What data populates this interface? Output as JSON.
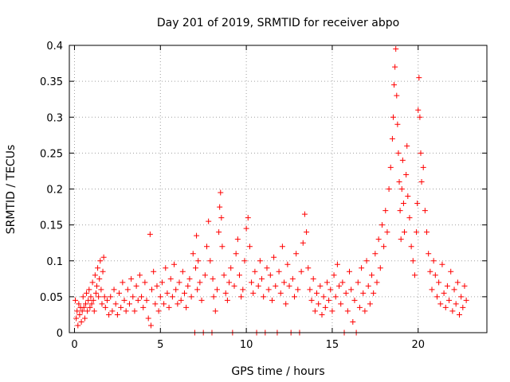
{
  "chart_data": {
    "type": "scatter",
    "title": "Day 201 of 2019, SRMTID for receiver abpo",
    "xlabel": "GPS time / hours",
    "ylabel": "SRMTID / TECUs",
    "xlim": [
      -0.3,
      24
    ],
    "ylim": [
      0,
      0.4
    ],
    "x_ticks": [
      0,
      5,
      10,
      15,
      20
    ],
    "x_tick_labels": [
      "0",
      "5",
      "10",
      "15",
      "20"
    ],
    "y_ticks": [
      0,
      0.05,
      0.1,
      0.15,
      0.2,
      0.25,
      0.3,
      0.35,
      0.4
    ],
    "y_tick_labels": [
      "0",
      "0.05",
      "0.1",
      "0.15",
      "0.2",
      "0.25",
      "0.3",
      "0.35",
      "0.4"
    ],
    "grid": true,
    "marker": "plus",
    "color": "#ff0000",
    "series": [
      {
        "name": "SRMTID",
        "points": [
          [
            0.05,
            0.045
          ],
          [
            0.1,
            0.02
          ],
          [
            0.15,
            0.03
          ],
          [
            0.2,
            0.01
          ],
          [
            0.25,
            0.04
          ],
          [
            0.3,
            0.025
          ],
          [
            0.35,
            0.035
          ],
          [
            0.4,
            0.015
          ],
          [
            0.45,
            0.03
          ],
          [
            0.5,
            0.05
          ],
          [
            0.55,
            0.035
          ],
          [
            0.6,
            0.02
          ],
          [
            0.65,
            0.04
          ],
          [
            0.7,
            0.055
          ],
          [
            0.75,
            0.03
          ],
          [
            0.8,
            0.045
          ],
          [
            0.85,
            0.06
          ],
          [
            0.9,
            0.035
          ],
          [
            0.95,
            0.05
          ],
          [
            1.0,
            0.04
          ],
          [
            1.05,
            0.07
          ],
          [
            1.1,
            0.045
          ],
          [
            1.15,
            0.03
          ],
          [
            1.2,
            0.08
          ],
          [
            1.25,
            0.055
          ],
          [
            1.3,
            0.065
          ],
          [
            1.35,
            0.09
          ],
          [
            1.4,
            0.05
          ],
          [
            1.45,
            0.075
          ],
          [
            1.5,
            0.1
          ],
          [
            1.55,
            0.06
          ],
          [
            1.6,
            0.04
          ],
          [
            1.65,
            0.085
          ],
          [
            1.7,
            0.105
          ],
          [
            1.75,
            0.05
          ],
          [
            1.8,
            0.035
          ],
          [
            1.9,
            0.045
          ],
          [
            2.0,
            0.025
          ],
          [
            2.1,
            0.05
          ],
          [
            2.2,
            0.03
          ],
          [
            2.3,
            0.06
          ],
          [
            2.4,
            0.04
          ],
          [
            2.5,
            0.025
          ],
          [
            2.6,
            0.055
          ],
          [
            2.7,
            0.035
          ],
          [
            2.8,
            0.07
          ],
          [
            2.9,
            0.045
          ],
          [
            3.0,
            0.03
          ],
          [
            3.1,
            0.06
          ],
          [
            3.2,
            0.04
          ],
          [
            3.3,
            0.075
          ],
          [
            3.4,
            0.05
          ],
          [
            3.5,
            0.03
          ],
          [
            3.6,
            0.065
          ],
          [
            3.7,
            0.045
          ],
          [
            3.8,
            0.08
          ],
          [
            3.9,
            0.05
          ],
          [
            4.0,
            0.035
          ],
          [
            4.1,
            0.07
          ],
          [
            4.2,
            0.045
          ],
          [
            4.3,
            0.02
          ],
          [
            4.4,
            0.137
          ],
          [
            4.45,
            0.01
          ],
          [
            4.5,
            0.06
          ],
          [
            4.6,
            0.085
          ],
          [
            4.7,
            0.04
          ],
          [
            4.8,
            0.065
          ],
          [
            4.9,
            0.03
          ],
          [
            5.0,
            0.05
          ],
          [
            5.1,
            0.07
          ],
          [
            5.2,
            0.04
          ],
          [
            5.3,
            0.09
          ],
          [
            5.4,
            0.055
          ],
          [
            5.5,
            0.035
          ],
          [
            5.6,
            0.075
          ],
          [
            5.7,
            0.05
          ],
          [
            5.8,
            0.095
          ],
          [
            5.9,
            0.06
          ],
          [
            6.0,
            0.04
          ],
          [
            6.1,
            0.07
          ],
          [
            6.2,
            0.045
          ],
          [
            6.3,
            0.085
          ],
          [
            6.4,
            0.055
          ],
          [
            6.5,
            0.035
          ],
          [
            6.6,
            0.065
          ],
          [
            6.7,
            0.075
          ],
          [
            6.8,
            0.05
          ],
          [
            6.9,
            0.11
          ],
          [
            7.0,
            0.0
          ],
          [
            7.05,
            0.09
          ],
          [
            7.1,
            0.135
          ],
          [
            7.15,
            0.06
          ],
          [
            7.2,
            0.1
          ],
          [
            7.3,
            0.07
          ],
          [
            7.4,
            0.045
          ],
          [
            7.5,
            0.0
          ],
          [
            7.6,
            0.08
          ],
          [
            7.7,
            0.12
          ],
          [
            7.8,
            0.155
          ],
          [
            7.9,
            0.1
          ],
          [
            8.0,
            0.0
          ],
          [
            8.05,
            0.075
          ],
          [
            8.1,
            0.05
          ],
          [
            8.2,
            0.03
          ],
          [
            8.3,
            0.06
          ],
          [
            8.4,
            0.14
          ],
          [
            8.45,
            0.175
          ],
          [
            8.5,
            0.195
          ],
          [
            8.55,
            0.16
          ],
          [
            8.6,
            0.12
          ],
          [
            8.7,
            0.08
          ],
          [
            8.8,
            0.055
          ],
          [
            8.9,
            0.045
          ],
          [
            9.0,
            0.07
          ],
          [
            9.1,
            0.09
          ],
          [
            9.2,
            0.0
          ],
          [
            9.3,
            0.065
          ],
          [
            9.4,
            0.11
          ],
          [
            9.5,
            0.13
          ],
          [
            9.6,
            0.08
          ],
          [
            9.7,
            0.05
          ],
          [
            9.8,
            0.06
          ],
          [
            9.9,
            0.1
          ],
          [
            10.0,
            0.145
          ],
          [
            10.1,
            0.16
          ],
          [
            10.2,
            0.12
          ],
          [
            10.3,
            0.07
          ],
          [
            10.4,
            0.055
          ],
          [
            10.5,
            0.085
          ],
          [
            10.6,
            0.0
          ],
          [
            10.7,
            0.065
          ],
          [
            10.8,
            0.1
          ],
          [
            10.9,
            0.075
          ],
          [
            11.0,
            0.05
          ],
          [
            11.1,
            0.0
          ],
          [
            11.2,
            0.09
          ],
          [
            11.3,
            0.06
          ],
          [
            11.4,
            0.08
          ],
          [
            11.5,
            0.045
          ],
          [
            11.6,
            0.105
          ],
          [
            11.7,
            0.065
          ],
          [
            11.8,
            0.0
          ],
          [
            11.9,
            0.085
          ],
          [
            12.0,
            0.055
          ],
          [
            12.1,
            0.12
          ],
          [
            12.2,
            0.07
          ],
          [
            12.3,
            0.04
          ],
          [
            12.4,
            0.095
          ],
          [
            12.5,
            0.065
          ],
          [
            12.6,
            0.0
          ],
          [
            12.7,
            0.075
          ],
          [
            12.8,
            0.05
          ],
          [
            12.9,
            0.11
          ],
          [
            13.0,
            0.06
          ],
          [
            13.1,
            0.0
          ],
          [
            13.2,
            0.085
          ],
          [
            13.3,
            0.125
          ],
          [
            13.4,
            0.165
          ],
          [
            13.5,
            0.14
          ],
          [
            13.6,
            0.09
          ],
          [
            13.7,
            0.06
          ],
          [
            13.8,
            0.045
          ],
          [
            13.9,
            0.075
          ],
          [
            14.0,
            0.03
          ],
          [
            14.1,
            0.055
          ],
          [
            14.2,
            0.04
          ],
          [
            14.3,
            0.065
          ],
          [
            14.4,
            0.025
          ],
          [
            14.5,
            0.05
          ],
          [
            14.6,
            0.035
          ],
          [
            14.7,
            0.07
          ],
          [
            14.8,
            0.045
          ],
          [
            14.9,
            0.06
          ],
          [
            15.0,
            0.03
          ],
          [
            15.1,
            0.08
          ],
          [
            15.2,
            0.05
          ],
          [
            15.3,
            0.095
          ],
          [
            15.4,
            0.065
          ],
          [
            15.5,
            0.04
          ],
          [
            15.6,
            0.07
          ],
          [
            15.7,
            0.0
          ],
          [
            15.8,
            0.055
          ],
          [
            15.9,
            0.03
          ],
          [
            16.0,
            0.085
          ],
          [
            16.1,
            0.06
          ],
          [
            16.2,
            0.015
          ],
          [
            16.3,
            0.045
          ],
          [
            16.4,
            0.0
          ],
          [
            16.5,
            0.07
          ],
          [
            16.6,
            0.035
          ],
          [
            16.7,
            0.09
          ],
          [
            16.8,
            0.055
          ],
          [
            16.9,
            0.03
          ],
          [
            17.0,
            0.1
          ],
          [
            17.1,
            0.065
          ],
          [
            17.2,
            0.04
          ],
          [
            17.3,
            0.08
          ],
          [
            17.4,
            0.055
          ],
          [
            17.5,
            0.11
          ],
          [
            17.6,
            0.07
          ],
          [
            17.7,
            0.13
          ],
          [
            17.8,
            0.09
          ],
          [
            17.9,
            0.15
          ],
          [
            18.0,
            0.12
          ],
          [
            18.1,
            0.17
          ],
          [
            18.2,
            0.14
          ],
          [
            18.3,
            0.2
          ],
          [
            18.4,
            0.23
          ],
          [
            18.5,
            0.27
          ],
          [
            18.55,
            0.3
          ],
          [
            18.6,
            0.345
          ],
          [
            18.65,
            0.37
          ],
          [
            18.7,
            0.395
          ],
          [
            18.75,
            0.33
          ],
          [
            18.8,
            0.29
          ],
          [
            18.85,
            0.25
          ],
          [
            18.9,
            0.21
          ],
          [
            18.95,
            0.17
          ],
          [
            19.0,
            0.13
          ],
          [
            19.05,
            0.2
          ],
          [
            19.1,
            0.24
          ],
          [
            19.15,
            0.18
          ],
          [
            19.2,
            0.14
          ],
          [
            19.3,
            0.22
          ],
          [
            19.35,
            0.26
          ],
          [
            19.4,
            0.19
          ],
          [
            19.5,
            0.16
          ],
          [
            19.6,
            0.12
          ],
          [
            19.7,
            0.1
          ],
          [
            19.8,
            0.08
          ],
          [
            19.9,
            0.14
          ],
          [
            19.95,
            0.18
          ],
          [
            20.0,
            0.31
          ],
          [
            20.05,
            0.355
          ],
          [
            20.1,
            0.3
          ],
          [
            20.15,
            0.25
          ],
          [
            20.2,
            0.21
          ],
          [
            20.3,
            0.23
          ],
          [
            20.4,
            0.17
          ],
          [
            20.5,
            0.14
          ],
          [
            20.6,
            0.11
          ],
          [
            20.7,
            0.085
          ],
          [
            20.8,
            0.06
          ],
          [
            20.9,
            0.1
          ],
          [
            21.0,
            0.08
          ],
          [
            21.1,
            0.05
          ],
          [
            21.2,
            0.07
          ],
          [
            21.3,
            0.04
          ],
          [
            21.4,
            0.095
          ],
          [
            21.5,
            0.055
          ],
          [
            21.6,
            0.035
          ],
          [
            21.7,
            0.065
          ],
          [
            21.8,
            0.045
          ],
          [
            21.9,
            0.085
          ],
          [
            22.0,
            0.03
          ],
          [
            22.1,
            0.06
          ],
          [
            22.2,
            0.04
          ],
          [
            22.3,
            0.07
          ],
          [
            22.4,
            0.025
          ],
          [
            22.5,
            0.05
          ],
          [
            22.6,
            0.035
          ],
          [
            22.7,
            0.065
          ],
          [
            22.8,
            0.045
          ]
        ]
      }
    ]
  }
}
